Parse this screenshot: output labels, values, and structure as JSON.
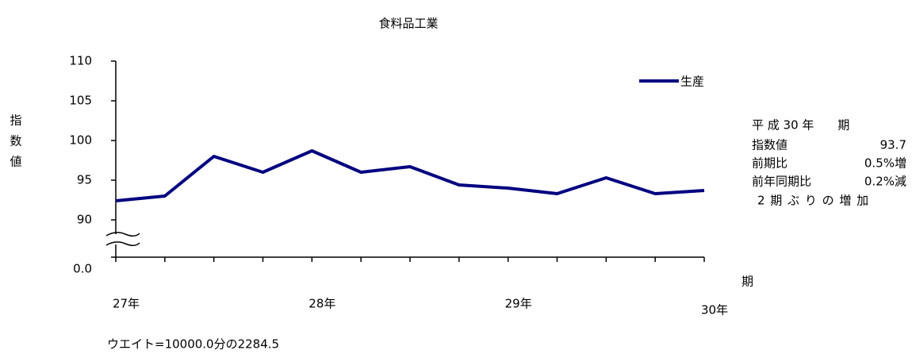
{
  "chart_data": {
    "type": "line",
    "title": "食料品工業",
    "y_label": "指数値",
    "x_label": "期",
    "categories": [
      "27年",
      null,
      null,
      null,
      "28年",
      null,
      null,
      null,
      "29年",
      null,
      null,
      null,
      "30年"
    ],
    "series": [
      {
        "name": "生産",
        "color": "#000080",
        "values": [
          92.4,
          93.0,
          98.0,
          96.0,
          98.7,
          96.0,
          96.7,
          94.4,
          94.0,
          93.3,
          95.3,
          93.3,
          93.7
        ]
      }
    ],
    "ylim": [
      0,
      110
    ],
    "yticks": [
      {
        "value": 0,
        "label": "0.0"
      },
      90,
      95,
      100,
      105,
      110
    ],
    "axis_break": true,
    "legend": "top-right",
    "annotations": {
      "period": "平 成 30 年　　期",
      "rows": [
        [
          "指数値",
          "93.7"
        ],
        [
          "前期比",
          "0.5%増"
        ],
        [
          "前年同期比",
          "0.2%減"
        ]
      ],
      "summary": "2 期 ぶ り の 増 加"
    },
    "footnote": "ウエイト=10000.0分の2284.5"
  }
}
